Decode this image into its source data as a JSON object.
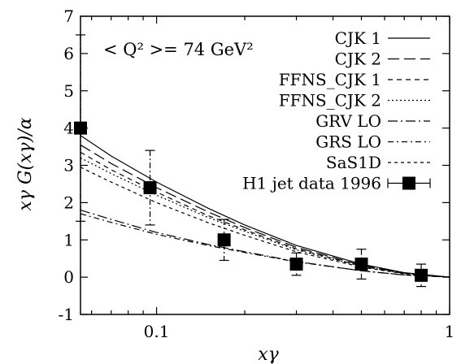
{
  "chart_data": {
    "type": "line",
    "title": "",
    "annotation": "< Q² >= 74 GeV²",
    "xlabel": "xγ",
    "ylabel": "xγ G(xγ)/α",
    "xscale": "log",
    "xlim": [
      0.055,
      1
    ],
    "ylim": [
      -1,
      7
    ],
    "xticks": [
      {
        "v": 0.1,
        "label": "0.1"
      },
      {
        "v": 1,
        "label": "1"
      }
    ],
    "yticks": [
      {
        "v": -1,
        "label": "-1"
      },
      {
        "v": 0,
        "label": "0"
      },
      {
        "v": 1,
        "label": "1"
      },
      {
        "v": 2,
        "label": "2"
      },
      {
        "v": 3,
        "label": "3"
      },
      {
        "v": 4,
        "label": "4"
      },
      {
        "v": 5,
        "label": "5"
      },
      {
        "v": 6,
        "label": "6"
      },
      {
        "v": 7,
        "label": "7"
      }
    ],
    "legend_position": "top-right",
    "grid": false,
    "series": [
      {
        "name": "CJK 1",
        "dash": "solid",
        "x": [
          0.055,
          0.07,
          0.1,
          0.15,
          0.2,
          0.3,
          0.5,
          0.7,
          1.0
        ],
        "y": [
          3.8,
          3.25,
          2.55,
          1.85,
          1.4,
          0.85,
          0.35,
          0.12,
          0.0
        ]
      },
      {
        "name": "CJK 2",
        "dash": "longdash",
        "x": [
          0.055,
          0.07,
          0.1,
          0.15,
          0.2,
          0.3,
          0.5,
          0.7,
          1.0
        ],
        "y": [
          3.55,
          3.05,
          2.4,
          1.75,
          1.33,
          0.8,
          0.32,
          0.11,
          0.0
        ]
      },
      {
        "name": "FFNS_CJK 1",
        "dash": "shortdash",
        "x": [
          0.055,
          0.07,
          0.1,
          0.15,
          0.2,
          0.3,
          0.5,
          0.7,
          1.0
        ],
        "y": [
          3.35,
          2.88,
          2.28,
          1.65,
          1.27,
          0.76,
          0.3,
          0.1,
          0.0
        ]
      },
      {
        "name": "FFNS_CJK 2",
        "dash": "dot",
        "x": [
          0.055,
          0.07,
          0.1,
          0.15,
          0.2,
          0.3,
          0.5,
          0.7,
          1.0
        ],
        "y": [
          3.2,
          2.78,
          2.2,
          1.6,
          1.23,
          0.73,
          0.29,
          0.1,
          0.0
        ]
      },
      {
        "name": "GRV LO",
        "dash": "dashdot",
        "x": [
          0.055,
          0.07,
          0.1,
          0.15,
          0.2,
          0.3,
          0.5,
          0.7,
          1.0
        ],
        "y": [
          1.8,
          1.55,
          1.2,
          0.88,
          0.68,
          0.42,
          0.17,
          0.06,
          0.0
        ]
      },
      {
        "name": "GRS LO",
        "dash": "dashdot2",
        "x": [
          0.055,
          0.07,
          0.1,
          0.15,
          0.2,
          0.3,
          0.5,
          0.7,
          1.0
        ],
        "y": [
          1.7,
          1.47,
          1.15,
          0.85,
          0.66,
          0.41,
          0.17,
          0.06,
          0.0
        ]
      },
      {
        "name": "SaS1D",
        "dash": "shortdash2",
        "x": [
          0.055,
          0.07,
          0.1,
          0.15,
          0.2,
          0.3,
          0.5,
          0.7,
          1.0
        ],
        "y": [
          2.95,
          2.55,
          2.0,
          1.46,
          1.12,
          0.68,
          0.27,
          0.09,
          0.0
        ]
      }
    ],
    "data_points": {
      "name": "H1 jet data 1996",
      "x": [
        0.055,
        0.095,
        0.17,
        0.3,
        0.5,
        0.8
      ],
      "y": [
        4.0,
        2.4,
        1.0,
        0.35,
        0.35,
        0.05
      ],
      "err": [
        2.5,
        1.0,
        0.55,
        0.3,
        0.4,
        0.3
      ]
    }
  }
}
